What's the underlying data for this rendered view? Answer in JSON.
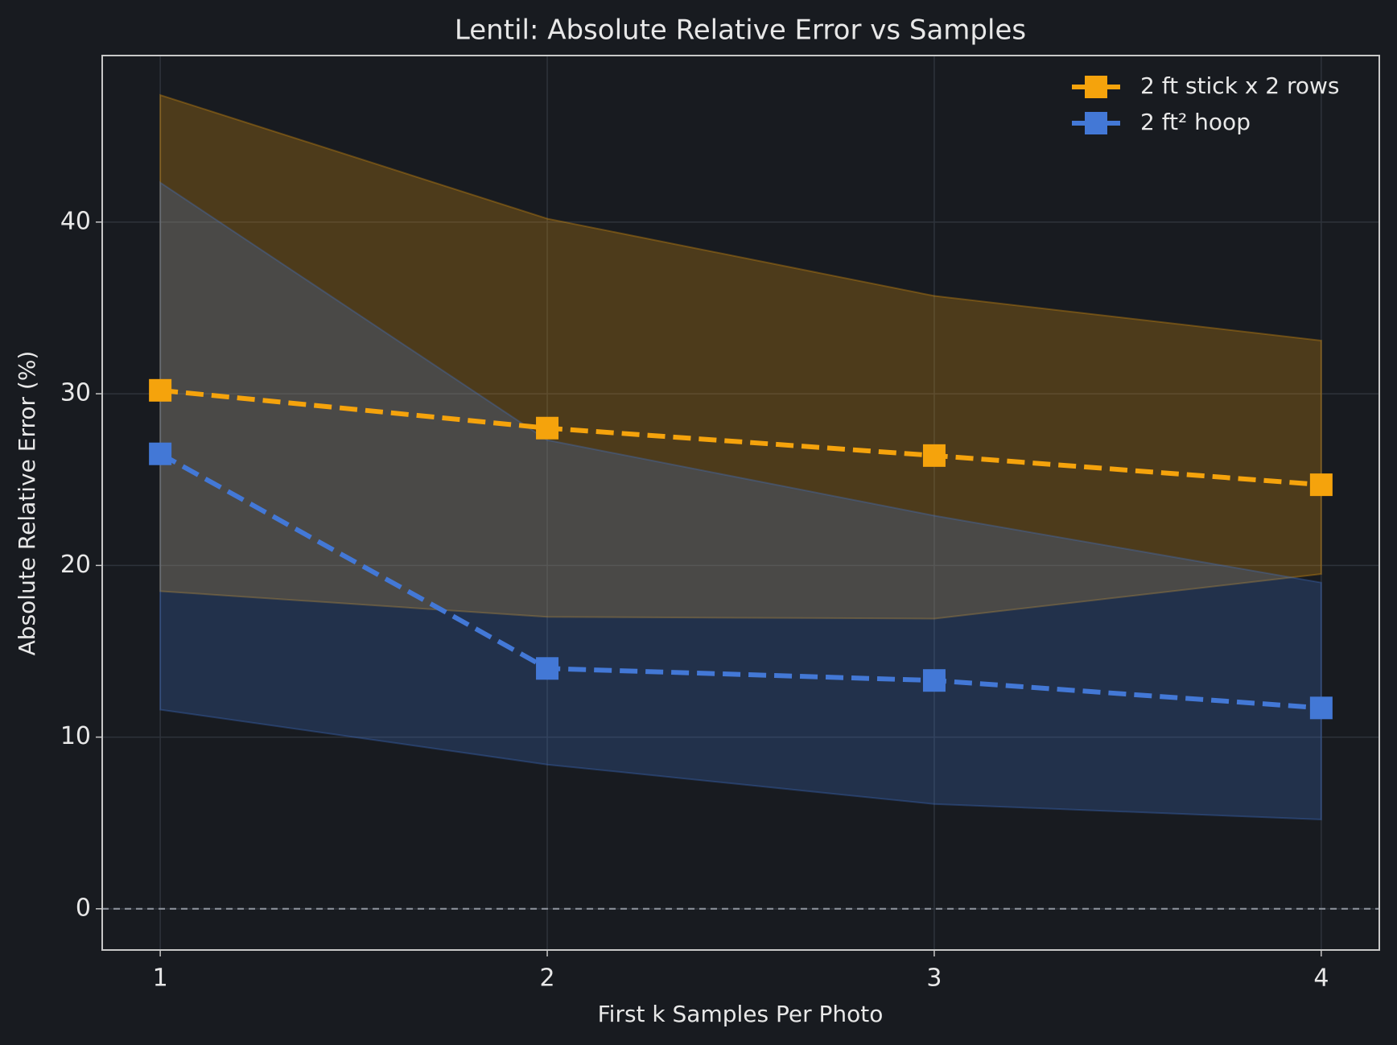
{
  "chart_data": {
    "type": "line",
    "title": "Lentil: Absolute Relative Error vs Samples",
    "xlabel": "First k Samples Per Photo",
    "ylabel": "Absolute Relative Error (%)",
    "x": [
      1,
      2,
      3,
      4
    ],
    "series": [
      {
        "name": "2 ft stick x 2 rows",
        "color": "#f5a30c",
        "values": [
          30.2,
          28.0,
          26.4,
          24.7
        ],
        "lower": [
          18.5,
          17.0,
          16.9,
          19.5
        ],
        "upper": [
          47.4,
          40.2,
          35.7,
          33.1
        ]
      },
      {
        "name": "2 ft² hoop",
        "color": "#4378d6",
        "values": [
          26.5,
          14.0,
          13.3,
          11.7
        ],
        "lower": [
          11.6,
          8.4,
          6.1,
          5.2
        ],
        "upper": [
          42.3,
          27.3,
          22.9,
          19.0
        ]
      }
    ],
    "xlim": [
      0.85,
      4.15
    ],
    "xticks": [
      1,
      2,
      3,
      4
    ],
    "ylim": [
      -2.4,
      49.7
    ],
    "yticks": [
      0,
      10,
      20,
      30,
      40
    ],
    "hline": 0,
    "grid": true,
    "legend": "upper right"
  }
}
